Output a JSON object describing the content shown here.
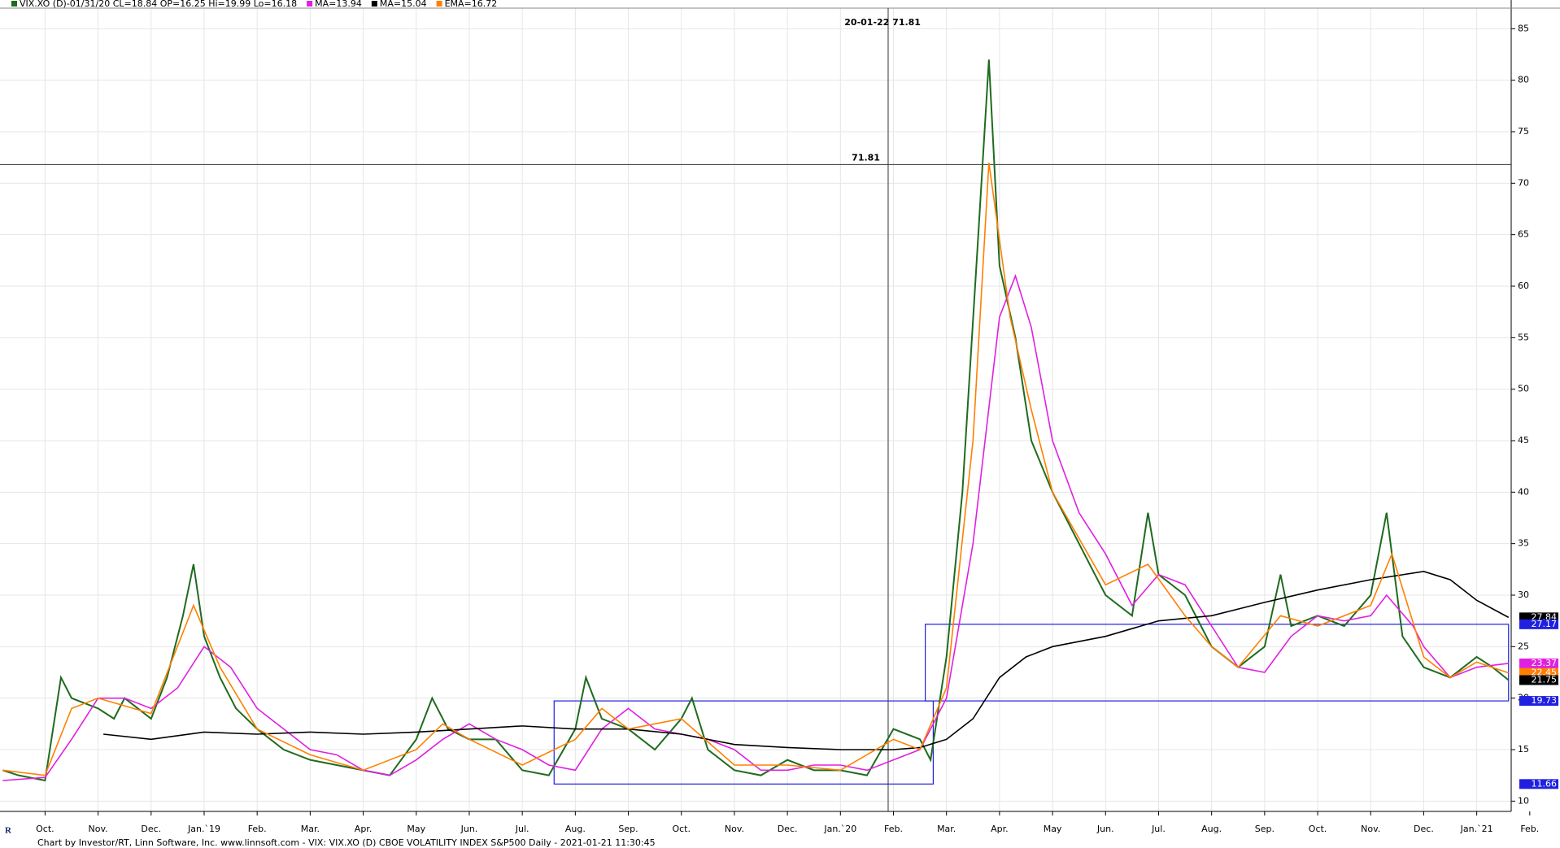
{
  "chart_data": {
    "type": "line",
    "header": [
      "VIX.XO (D)-01/31/20 CL=18.84 OP=16.25 Hi=19.99 Lo=16.18",
      "MA=13.94",
      "MA=15.04",
      "EMA=16.72"
    ],
    "footer": "Chart by Investor/RT, Linn Software, Inc. www.linnsoft.com - VIX: VIX.XO (D) CBOE VOLATILITY INDEX S&P500 Daily - 2021-01-21 11:30:45",
    "xlim": [
      -0.85,
      27.65
    ],
    "xticks": [
      {
        "value": 0,
        "label": "Oct."
      },
      {
        "value": 1,
        "label": "Nov."
      },
      {
        "value": 2,
        "label": "Dec."
      },
      {
        "value": 3,
        "label": "Jan.`19"
      },
      {
        "value": 4,
        "label": "Feb."
      },
      {
        "value": 5,
        "label": "Mar."
      },
      {
        "value": 6,
        "label": "Apr."
      },
      {
        "value": 7,
        "label": "May"
      },
      {
        "value": 8,
        "label": "Jun."
      },
      {
        "value": 9,
        "label": "Jul."
      },
      {
        "value": 10,
        "label": "Aug."
      },
      {
        "value": 11,
        "label": "Sep."
      },
      {
        "value": 12,
        "label": "Oct."
      },
      {
        "value": 13,
        "label": "Nov."
      },
      {
        "value": 14,
        "label": "Dec."
      },
      {
        "value": 15,
        "label": "Jan.`20"
      },
      {
        "value": 16,
        "label": "Feb."
      },
      {
        "value": 17,
        "label": "Mar."
      },
      {
        "value": 18,
        "label": "Apr."
      },
      {
        "value": 19,
        "label": "May"
      },
      {
        "value": 20,
        "label": "Jun."
      },
      {
        "value": 21,
        "label": "Jul."
      },
      {
        "value": 22,
        "label": "Aug."
      },
      {
        "value": 23,
        "label": "Sep."
      },
      {
        "value": 24,
        "label": "Oct."
      },
      {
        "value": 25,
        "label": "Nov."
      },
      {
        "value": 26,
        "label": "Dec."
      },
      {
        "value": 27,
        "label": "Jan.`21"
      },
      {
        "value": 28,
        "label": "Feb."
      }
    ],
    "ylim": [
      9,
      87
    ],
    "yticks": [
      10,
      15,
      20,
      25,
      30,
      35,
      40,
      45,
      50,
      55,
      60,
      65,
      70,
      75,
      80,
      85
    ],
    "grid": true,
    "series": [
      {
        "name": "VIX.XO",
        "color": "#1f6b1f",
        "x": [
          -0.8,
          -0.5,
          0,
          0.3,
          0.5,
          1,
          1.3,
          1.5,
          2,
          2.3,
          2.6,
          2.8,
          3,
          3.3,
          3.6,
          4,
          4.5,
          5,
          5.5,
          6,
          6.5,
          7,
          7.3,
          7.6,
          8,
          8.5,
          9,
          9.5,
          10,
          10.2,
          10.5,
          11,
          11.5,
          12,
          12.2,
          12.5,
          13,
          13.5,
          14,
          14.5,
          15,
          15.5,
          16,
          16.5,
          16.7,
          17,
          17.3,
          17.6,
          17.8,
          18,
          18.3,
          18.6,
          19,
          19.5,
          20,
          20.5,
          20.8,
          21,
          21.5,
          22,
          22.5,
          23,
          23.3,
          23.5,
          24,
          24.5,
          25,
          25.3,
          25.6,
          26,
          26.5,
          27,
          27.3,
          27.6
        ],
        "values": [
          13,
          12.5,
          12,
          22,
          20,
          19,
          18,
          20,
          18,
          22,
          28,
          33,
          26,
          22,
          19,
          17,
          15,
          14,
          13.5,
          13,
          12.5,
          16,
          20,
          17,
          16,
          16,
          13,
          12.5,
          17,
          22,
          18,
          17,
          15,
          18,
          20,
          15,
          13,
          12.5,
          14,
          13,
          13,
          12.5,
          17,
          16,
          14,
          24,
          40,
          65,
          82,
          62,
          55,
          45,
          40,
          35,
          30,
          28,
          38,
          32,
          30,
          25,
          23,
          25,
          32,
          27,
          28,
          27,
          30,
          38,
          26,
          23,
          22,
          24,
          23,
          21.75
        ]
      },
      {
        "name": "MA",
        "color": "#e020e0",
        "x": [
          -0.8,
          0,
          0.5,
          1,
          1.5,
          2,
          2.5,
          3,
          3.5,
          4,
          4.5,
          5,
          5.5,
          6,
          6.5,
          7,
          7.5,
          8,
          8.5,
          9,
          9.5,
          10,
          10.5,
          11,
          11.5,
          12,
          12.5,
          13,
          13.5,
          14,
          14.5,
          15,
          15.5,
          16,
          16.5,
          17,
          17.5,
          18,
          18.3,
          18.6,
          19,
          19.5,
          20,
          20.5,
          21,
          21.5,
          22,
          22.5,
          23,
          23.5,
          24,
          24.5,
          25,
          25.3,
          25.8,
          26,
          26.5,
          27,
          27.6
        ],
        "values": [
          12,
          12.3,
          16,
          20,
          20,
          19,
          21,
          25,
          23,
          19,
          17,
          15,
          14.5,
          13,
          12.5,
          14,
          16,
          17.5,
          16,
          15,
          13.5,
          13,
          17,
          19,
          17,
          16.5,
          16,
          15,
          13,
          13,
          13.5,
          13.5,
          13,
          14,
          15,
          20,
          35,
          57,
          61,
          56,
          45,
          38,
          34,
          29,
          32,
          31,
          27,
          23,
          22.5,
          26,
          28,
          27.5,
          28,
          30,
          27,
          25,
          22,
          23,
          23.37
        ]
      },
      {
        "name": "MA",
        "color": "#000000",
        "x": [
          1.1,
          2,
          3,
          4,
          5,
          6,
          7,
          8,
          9,
          10,
          11,
          12,
          13,
          14,
          15,
          16,
          16.5,
          17,
          17.5,
          18,
          18.5,
          19,
          20,
          21,
          22,
          23,
          24,
          25,
          26,
          26.5,
          27,
          27.6
        ],
        "values": [
          16.5,
          16,
          16.7,
          16.5,
          16.7,
          16.5,
          16.7,
          17,
          17.3,
          17,
          17,
          16.5,
          15.5,
          15.2,
          15,
          15,
          15.2,
          16,
          18,
          22,
          24,
          25,
          26,
          27.5,
          28,
          29.3,
          30.5,
          31.5,
          32.3,
          31.5,
          29.5,
          27.84
        ]
      },
      {
        "name": "EMA",
        "color": "#ff8000",
        "x": [
          -0.8,
          0,
          0.5,
          1,
          2,
          2.8,
          3.3,
          4,
          5,
          6,
          7,
          7.5,
          8,
          9,
          10,
          10.5,
          11,
          12,
          13,
          14,
          15,
          16,
          16.5,
          17,
          17.5,
          17.8,
          18.2,
          18.6,
          19,
          20,
          20.8,
          21.5,
          22,
          22.5,
          23.3,
          24,
          25,
          25.4,
          26,
          26.5,
          27,
          27.6
        ],
        "values": [
          13,
          12.5,
          19,
          20,
          18.5,
          29,
          23,
          17,
          14.5,
          13,
          15,
          17.5,
          16,
          13.5,
          16,
          19,
          17,
          18,
          13.5,
          13.5,
          13,
          16,
          15,
          21,
          45,
          72,
          57,
          48,
          40,
          31,
          33,
          28,
          25,
          23,
          28,
          27,
          29,
          34,
          24,
          22,
          23.5,
          22.45
        ]
      }
    ],
    "price_labels": [
      {
        "value": 27.84,
        "color": "#000000"
      },
      {
        "value": 27.17,
        "color": "#2020e0"
      },
      {
        "value": 23.37,
        "color": "#e020e0"
      },
      {
        "value": 22.45,
        "color": "#ff8000"
      },
      {
        "value": 21.75,
        "color": "#000000"
      },
      {
        "value": 19.73,
        "color": "#2020e0"
      },
      {
        "value": 11.66,
        "color": "#2020e0"
      }
    ],
    "crosshair": {
      "x": 15.9,
      "y": 71.81,
      "label": "20-01-22 71.81"
    },
    "hline_label": "71.81",
    "boxes": [
      {
        "x": [
          9.6,
          16.75
        ],
        "y": [
          11.66,
          19.73
        ]
      },
      {
        "x": [
          16.6,
          27.6
        ],
        "y": [
          19.73,
          27.17
        ]
      }
    ],
    "box_color": "#2020e0"
  }
}
